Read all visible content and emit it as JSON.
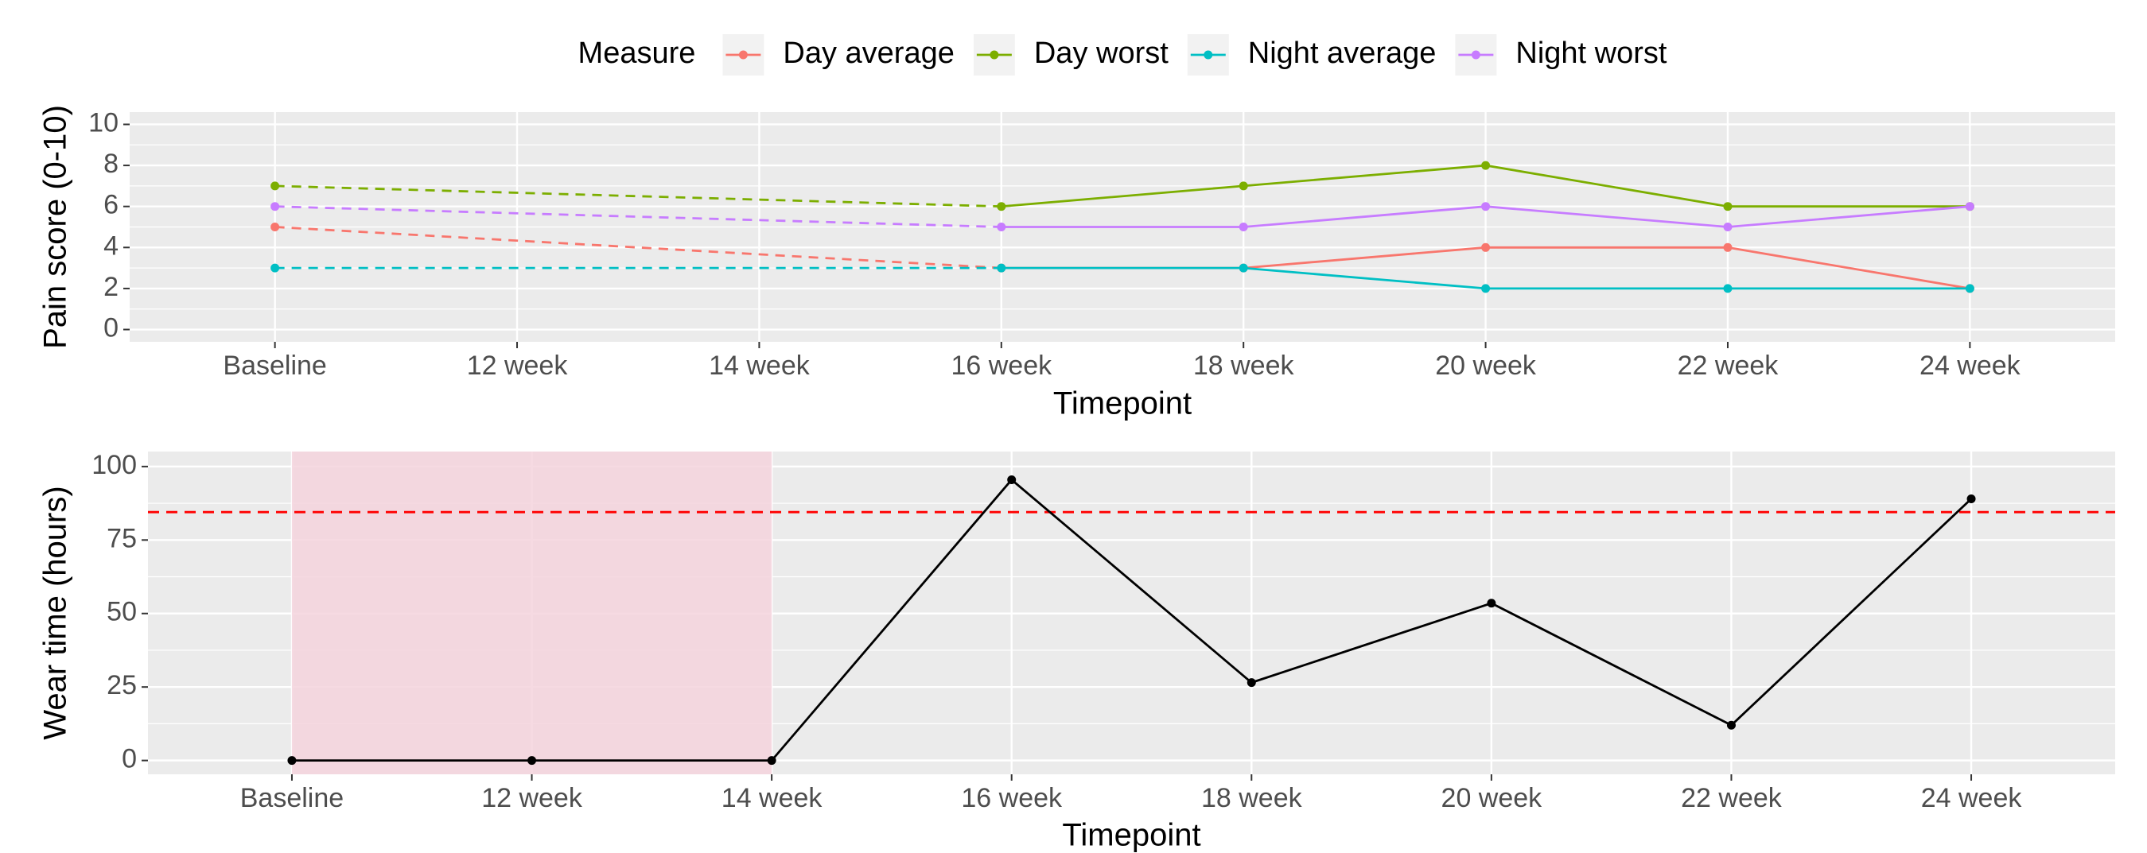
{
  "chart_data": [
    {
      "type": "line",
      "x_label": "Timepoint",
      "y_label": "Pain score (0-10)",
      "categories": [
        "Baseline",
        "12 week",
        "14 week",
        "16 week",
        "18 week",
        "20 week",
        "22 week",
        "24 week"
      ],
      "series": [
        {
          "name": "Day average",
          "color": "#F8766D",
          "values": [
            5,
            null,
            null,
            3,
            3,
            4,
            4,
            2
          ]
        },
        {
          "name": "Day worst",
          "color": "#7CAE00",
          "values": [
            7,
            null,
            null,
            6,
            7,
            8,
            6,
            6
          ]
        },
        {
          "name": "Night average",
          "color": "#00BFC4",
          "values": [
            3,
            null,
            null,
            3,
            3,
            2,
            2,
            2
          ]
        },
        {
          "name": "Night worst",
          "color": "#C77CFF",
          "values": [
            6,
            null,
            null,
            5,
            5,
            6,
            5,
            6
          ]
        }
      ],
      "ylim": [
        -0.6,
        10.6
      ],
      "yticks": [
        0,
        2,
        4,
        6,
        8,
        10
      ],
      "grid": true,
      "minor_grid": true,
      "connect_gaps": "dashed",
      "legend": {
        "title": "Measure",
        "position": "top"
      }
    },
    {
      "type": "line",
      "x_label": "Timepoint",
      "y_label": "Wear time (hours)",
      "categories": [
        "Baseline",
        "12 week",
        "14 week",
        "16 week",
        "18 week",
        "20 week",
        "22 week",
        "24 week"
      ],
      "series": [
        {
          "color": "#000000",
          "values": [
            0,
            0,
            0,
            95.5,
            26.5,
            53.5,
            12,
            89
          ]
        }
      ],
      "ylim": [
        -4.7,
        105.1
      ],
      "yticks": [
        0,
        25,
        50,
        75,
        100
      ],
      "grid": true,
      "minor_grid": true,
      "hline": {
        "value": 84.5,
        "color": "#FF0000",
        "style": "dashed"
      },
      "shaded_range": {
        "from_index": 0,
        "to_index": 2,
        "color": "#F4D3DD"
      }
    }
  ]
}
